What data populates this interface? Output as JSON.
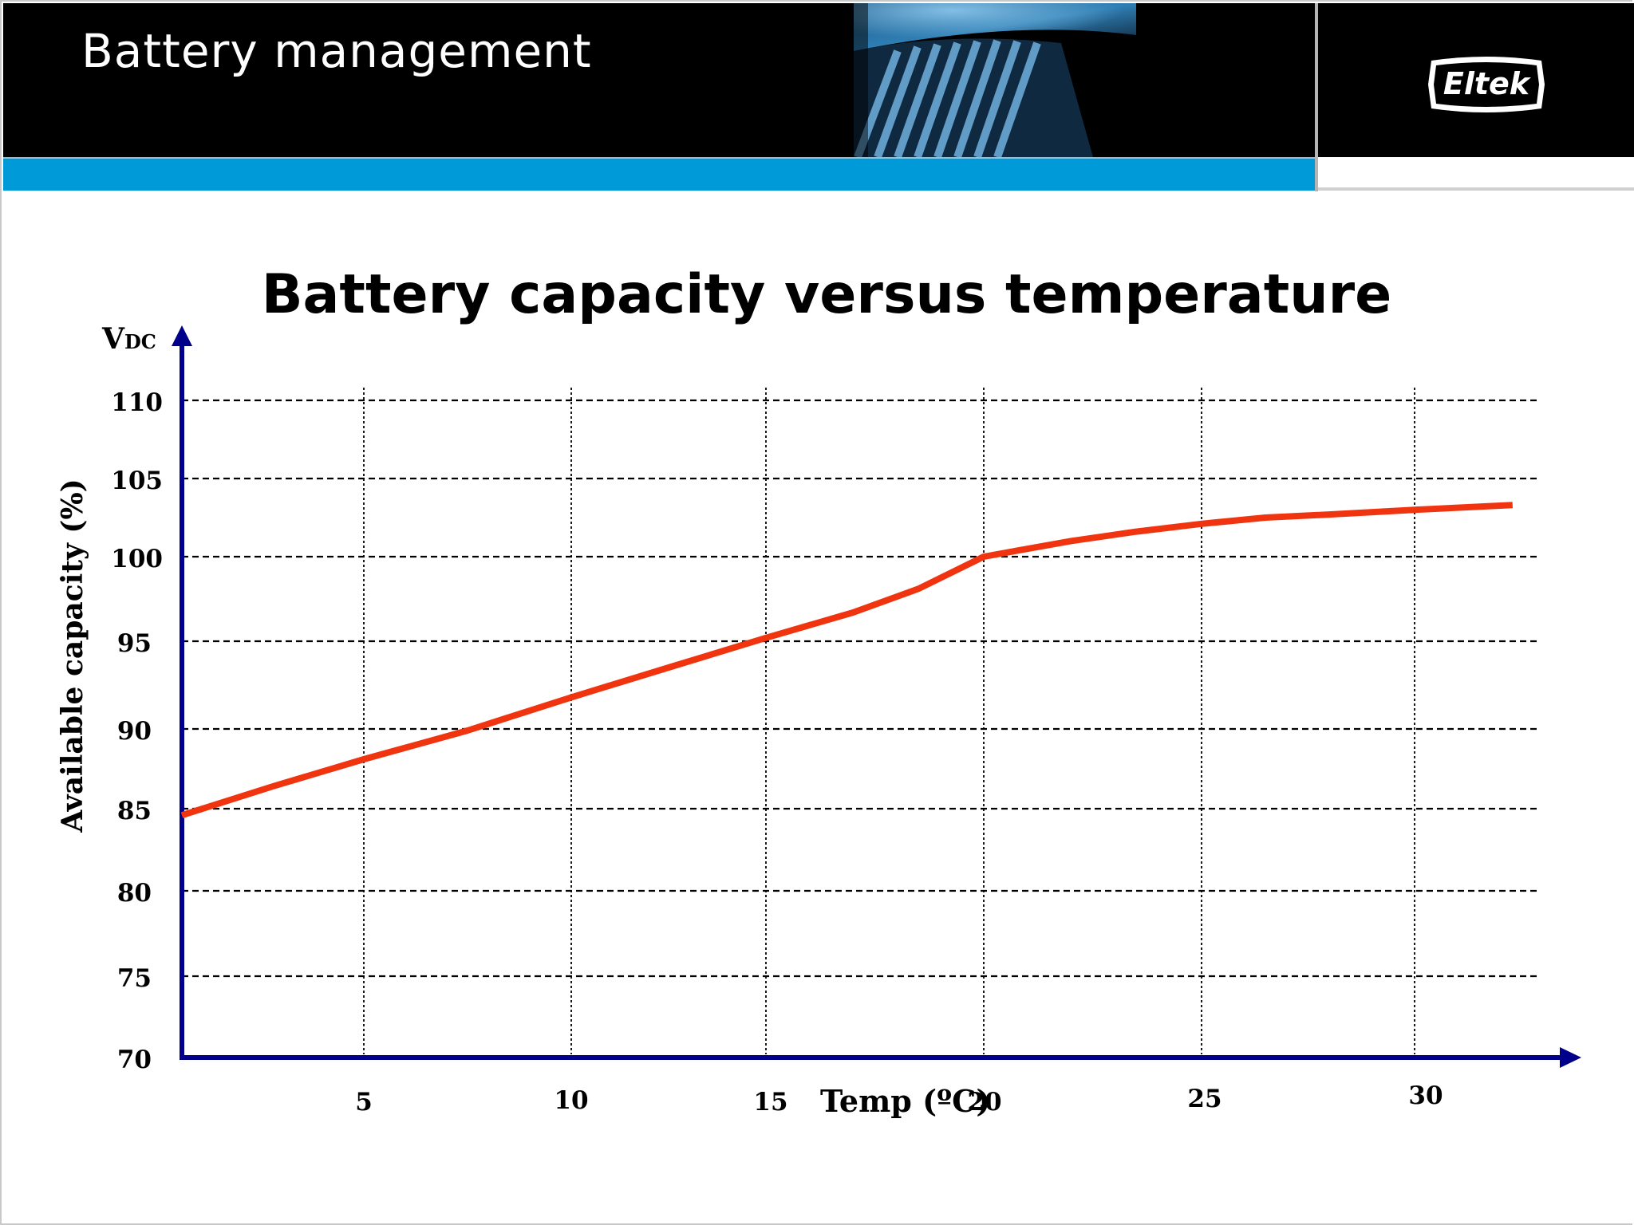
{
  "header": {
    "title": "Battery management",
    "logo_text": "Eltek"
  },
  "colors": {
    "header_bg": "#000000",
    "accent_blue": "#009ad8",
    "axis": "#00008b",
    "line": "#f0340f"
  },
  "chart_data": {
    "type": "line",
    "title": "Battery capacity versus temperature",
    "ylabel": "Available capacity (%)",
    "y_unit_label_main": "V",
    "y_unit_label_sub": "DC",
    "xlabel": "Temp (ºC)",
    "x_ticks": [
      5,
      10,
      15,
      20,
      25,
      30
    ],
    "y_ticks": [
      70,
      75,
      80,
      85,
      90,
      95,
      100,
      105,
      110
    ],
    "grid": true,
    "series": [
      {
        "x": [
          0,
          2.5,
          5,
          7.5,
          10,
          12.5,
          15,
          17,
          18.5,
          20,
          22,
          23.5,
          25,
          26.5,
          28,
          30,
          32.3
        ],
        "y": [
          84.6,
          86.4,
          88.1,
          89.9,
          91.8,
          93.5,
          95.2,
          96.7,
          98.1,
          100.0,
          101.0,
          101.6,
          102.1,
          102.5,
          102.7,
          103.0,
          103.3
        ]
      }
    ]
  }
}
